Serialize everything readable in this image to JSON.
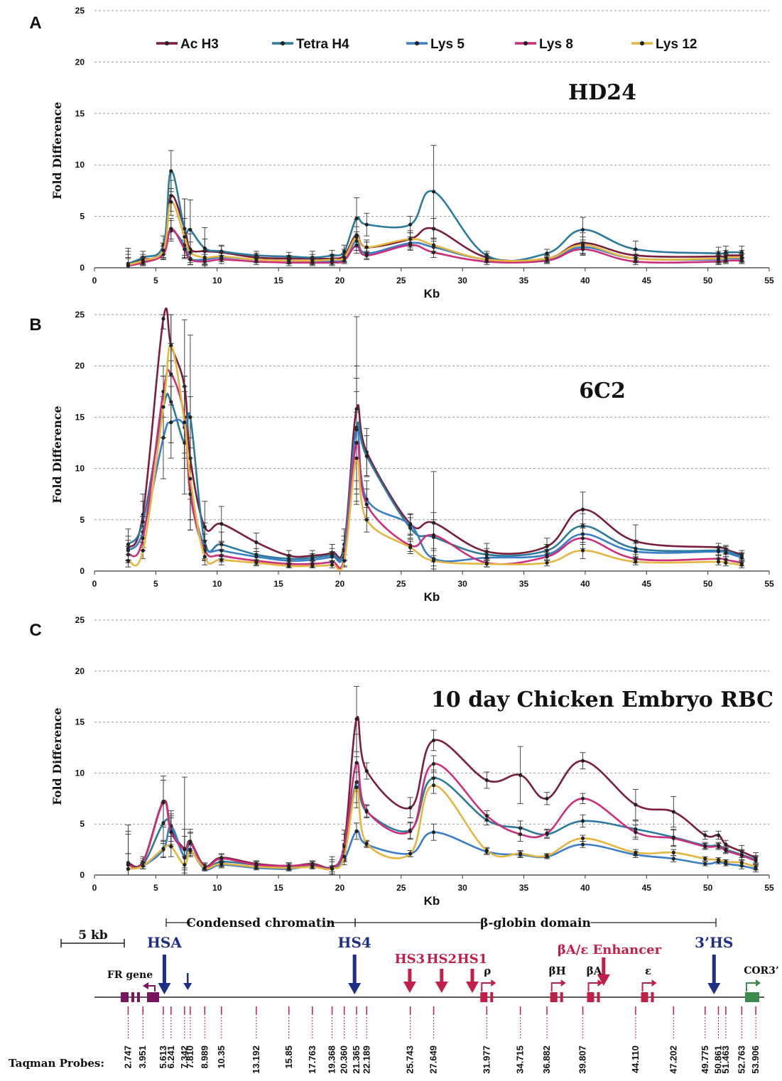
{
  "chart_data": [
    {
      "type": "line",
      "panel_label": "A",
      "title": "HD24",
      "xlabel": "Kb",
      "ylabel": "Fold Difference",
      "xlim": [
        0,
        55
      ],
      "ylim": [
        0,
        25
      ],
      "x_ticks": [
        "0",
        "5",
        "10",
        "15",
        "20",
        "25",
        "30",
        "35",
        "40",
        "45",
        "50",
        "55"
      ],
      "y_ticks": [
        "0",
        "5",
        "10",
        "15",
        "20",
        "25"
      ],
      "grid": "horizontal dashed",
      "legend_position": "top",
      "x": [
        2.747,
        3.951,
        5.613,
        6.241,
        7.342,
        7.81,
        8.989,
        10.35,
        13.192,
        15.85,
        17.763,
        19.368,
        20.36,
        21.365,
        22.189,
        25.743,
        27.649,
        31.977,
        36.882,
        39.807,
        44.11,
        50.861,
        51.463,
        52.763
      ],
      "series": [
        {
          "name": "Ac H3",
          "values": [
            0.4,
            0.8,
            1.6,
            7.0,
            3.8,
            1.8,
            1.6,
            1.5,
            1.0,
            0.9,
            0.9,
            0.9,
            1.2,
            3.2,
            2.0,
            2.8,
            3.8,
            1.0,
            0.9,
            2.4,
            1.2,
            1.1,
            1.2,
            1.2
          ],
          "err": [
            1.2,
            0.5,
            0.8,
            1.5,
            2.9,
            1.5,
            1.2,
            0.6,
            0.4,
            0.3,
            0.4,
            0.4,
            0.6,
            1.5,
            0.7,
            0.8,
            1.0,
            0.4,
            0.4,
            1.0,
            0.5,
            0.5,
            0.5,
            0.5
          ]
        },
        {
          "name": "Tetra H4",
          "values": [
            0.4,
            1.0,
            2.2,
            9.4,
            3.8,
            3.7,
            1.9,
            1.6,
            1.2,
            1.1,
            1.0,
            1.2,
            1.6,
            4.8,
            4.2,
            4.2,
            7.4,
            1.2,
            1.4,
            3.7,
            1.8,
            1.4,
            1.5,
            1.5
          ],
          "err": [
            1.5,
            0.6,
            0.9,
            2.0,
            2.9,
            2.9,
            2.0,
            0.6,
            0.4,
            0.4,
            0.6,
            0.5,
            0.6,
            2.0,
            1.1,
            0.8,
            4.5,
            0.4,
            0.4,
            1.2,
            0.8,
            0.6,
            0.6,
            0.6
          ]
        },
        {
          "name": "Lys 5",
          "values": [
            0.2,
            0.6,
            1.5,
            3.6,
            2.2,
            0.9,
            0.8,
            1.0,
            0.8,
            0.7,
            0.6,
            0.6,
            0.9,
            2.6,
            1.4,
            2.4,
            2.0,
            0.8,
            0.8,
            2.0,
            0.9,
            0.8,
            0.9,
            0.9
          ],
          "err": [
            0.8,
            0.4,
            0.6,
            1.0,
            1.2,
            0.6,
            0.5,
            0.4,
            0.3,
            0.3,
            0.3,
            0.3,
            0.4,
            0.9,
            0.5,
            0.6,
            0.6,
            0.3,
            0.3,
            0.7,
            0.4,
            0.4,
            0.4,
            0.4
          ]
        },
        {
          "name": "Lys 8",
          "values": [
            0.2,
            0.5,
            1.3,
            3.8,
            1.8,
            0.8,
            0.6,
            0.8,
            0.6,
            0.5,
            0.5,
            0.5,
            0.7,
            2.2,
            1.2,
            2.2,
            1.5,
            0.6,
            0.7,
            1.8,
            0.6,
            0.6,
            0.7,
            0.7
          ],
          "err": [
            0.7,
            0.3,
            0.5,
            1.0,
            0.9,
            0.5,
            0.4,
            0.4,
            0.3,
            0.3,
            0.3,
            0.3,
            0.3,
            0.8,
            0.4,
            0.5,
            0.5,
            0.3,
            0.3,
            0.6,
            0.3,
            0.3,
            0.3,
            0.3
          ]
        },
        {
          "name": "Lys 12",
          "values": [
            0.3,
            0.7,
            1.7,
            6.4,
            3.0,
            1.5,
            1.0,
            1.1,
            0.8,
            0.7,
            0.7,
            0.8,
            1.0,
            3.0,
            2.0,
            2.8,
            2.2,
            0.8,
            0.9,
            2.2,
            0.9,
            0.9,
            1.0,
            1.0
          ],
          "err": [
            1.0,
            0.4,
            0.7,
            1.3,
            1.8,
            1.0,
            0.7,
            0.5,
            0.3,
            0.3,
            0.3,
            0.3,
            0.4,
            1.0,
            0.5,
            0.6,
            0.6,
            0.3,
            0.3,
            0.8,
            0.4,
            0.4,
            0.4,
            0.4
          ]
        }
      ]
    },
    {
      "type": "line",
      "panel_label": "B",
      "title": "6C2",
      "xlabel": "Kb",
      "ylabel": "Fold Difference",
      "xlim": [
        0,
        55
      ],
      "ylim": [
        0,
        25
      ],
      "x_ticks": [
        "0",
        "5",
        "10",
        "15",
        "20",
        "25",
        "30",
        "35",
        "40",
        "45",
        "50",
        "55"
      ],
      "y_ticks": [
        "0",
        "5",
        "10",
        "15",
        "20",
        "25"
      ],
      "grid": "horizontal dashed",
      "x": [
        2.747,
        3.951,
        5.613,
        6.241,
        7.342,
        7.81,
        8.989,
        10.35,
        13.192,
        15.85,
        17.763,
        19.368,
        20.36,
        21.365,
        22.189,
        25.743,
        27.649,
        31.977,
        36.882,
        39.807,
        44.11,
        50.861,
        51.463,
        52.763
      ],
      "series": [
        {
          "name": "Ac H3",
          "values": [
            2.2,
            5.5,
            24.6,
            22.0,
            18.0,
            11.0,
            4.3,
            4.6,
            2.8,
            1.5,
            1.5,
            1.8,
            2.6,
            15.8,
            11.6,
            4.6,
            4.7,
            1.9,
            2.4,
            6.0,
            2.9,
            2.3,
            2.1,
            1.6
          ],
          "err": [
            1.2,
            2.0,
            1.0,
            3.0,
            6.5,
            6.0,
            2.5,
            1.7,
            0.9,
            0.5,
            0.5,
            0.8,
            1.5,
            9.0,
            2.3,
            1.0,
            5.0,
            0.8,
            0.8,
            1.7,
            1.6,
            0.4,
            0.4,
            0.4
          ]
        },
        {
          "name": "Tetra H4",
          "values": [
            2.6,
            4.8,
            16.0,
            16.5,
            12.5,
            15.0,
            2.9,
            2.6,
            1.6,
            1.2,
            1.3,
            1.6,
            2.2,
            14.0,
            11.2,
            4.2,
            3.3,
            1.6,
            2.0,
            4.4,
            2.2,
            2.0,
            2.0,
            1.4
          ],
          "err": [
            1.5,
            2.0,
            3.0,
            4.0,
            5.0,
            8.0,
            1.8,
            1.2,
            0.6,
            0.4,
            0.4,
            0.6,
            1.2,
            6.0,
            2.0,
            1.0,
            2.4,
            0.6,
            0.6,
            1.2,
            0.8,
            0.4,
            0.4,
            0.4
          ]
        },
        {
          "name": "Lys 5",
          "values": [
            2.0,
            3.8,
            13.0,
            14.5,
            14.0,
            8.0,
            2.4,
            2.0,
            1.4,
            1.0,
            1.1,
            1.4,
            2.0,
            13.8,
            7.0,
            4.5,
            1.2,
            1.3,
            1.6,
            3.6,
            1.9,
            1.9,
            1.8,
            1.3
          ],
          "err": [
            1.0,
            1.5,
            4.0,
            3.5,
            4.0,
            4.0,
            1.2,
            0.8,
            0.5,
            0.4,
            0.4,
            0.5,
            1.0,
            5.0,
            1.8,
            1.0,
            1.0,
            0.5,
            0.5,
            1.0,
            0.8,
            0.4,
            0.4,
            0.4
          ]
        },
        {
          "name": "Lys 8",
          "values": [
            1.6,
            3.2,
            17.5,
            19.2,
            15.0,
            7.5,
            2.0,
            1.5,
            1.0,
            0.7,
            0.7,
            0.9,
            1.3,
            12.5,
            6.5,
            2.5,
            3.5,
            0.8,
            1.4,
            3.2,
            1.2,
            1.2,
            1.1,
            0.8
          ],
          "err": [
            0.8,
            1.2,
            2.5,
            3.0,
            4.0,
            3.5,
            1.0,
            0.6,
            0.4,
            0.3,
            0.3,
            0.4,
            0.8,
            5.0,
            1.5,
            0.6,
            1.5,
            0.4,
            0.4,
            1.0,
            0.4,
            0.3,
            0.3,
            0.3
          ]
        },
        {
          "name": "Lys 12",
          "values": [
            1.0,
            2.0,
            16.0,
            22.0,
            14.5,
            9.0,
            1.4,
            1.1,
            0.8,
            0.5,
            0.5,
            0.6,
            1.0,
            11.0,
            5.0,
            2.3,
            1.0,
            0.7,
            0.8,
            2.0,
            0.9,
            0.9,
            0.8,
            0.6
          ],
          "err": [
            0.6,
            0.8,
            3.0,
            3.0,
            4.5,
            4.0,
            0.8,
            0.5,
            0.3,
            0.2,
            0.2,
            0.3,
            0.6,
            4.5,
            1.2,
            0.6,
            0.5,
            0.3,
            0.3,
            0.8,
            0.3,
            0.3,
            0.3,
            0.3
          ]
        }
      ]
    },
    {
      "type": "line",
      "panel_label": "C",
      "title": "10 day Chicken Embryo RBC",
      "xlabel": "Kb",
      "ylabel": "Fold Difference",
      "xlim": [
        0,
        55
      ],
      "ylim": [
        0,
        25
      ],
      "x_ticks": [
        "0",
        "5",
        "10",
        "15",
        "20",
        "25",
        "30",
        "35",
        "40",
        "45",
        "50",
        "55"
      ],
      "y_ticks": [
        "0",
        "5",
        "10",
        "15",
        "20",
        "25"
      ],
      "grid": "horizontal dashed",
      "x": [
        2.747,
        3.951,
        5.613,
        6.241,
        7.342,
        7.81,
        8.989,
        10.35,
        13.192,
        15.85,
        17.763,
        19.368,
        20.36,
        21.365,
        22.189,
        25.743,
        27.649,
        31.977,
        34.715,
        36.882,
        39.807,
        44.11,
        47.202,
        49.775,
        50.861,
        51.463,
        52.763,
        53.906
      ],
      "series": [
        {
          "name": "Ac H3",
          "values": [
            1.2,
            1.3,
            7.2,
            4.5,
            2.6,
            3.3,
            0.9,
            1.7,
            1.1,
            0.9,
            1.1,
            0.8,
            3.0,
            15.3,
            10.2,
            6.6,
            13.2,
            9.3,
            9.8,
            7.5,
            11.2,
            6.9,
            6.2,
            3.9,
            3.9,
            3.0,
            2.3,
            1.7
          ],
          "err": [
            3.7,
            0.5,
            2.5,
            1.5,
            7.0,
            1.2,
            0.3,
            0.4,
            0.3,
            0.3,
            0.3,
            1.0,
            1.4,
            3.2,
            0.8,
            1.0,
            1.0,
            0.8,
            2.8,
            0.6,
            0.8,
            1.5,
            1.5,
            0.4,
            0.4,
            0.4,
            0.6,
            0.5
          ]
        },
        {
          "name": "Tetra H4",
          "values": [
            1.0,
            1.0,
            5.1,
            4.8,
            1.8,
            3.1,
            0.7,
            1.3,
            1.0,
            0.8,
            1.0,
            0.7,
            2.4,
            9.1,
            6.2,
            4.4,
            9.5,
            5.4,
            4.6,
            4.0,
            5.3,
            4.5,
            3.7,
            2.9,
            2.9,
            2.5,
            2.0,
            1.5
          ],
          "err": [
            3.0,
            0.4,
            2.0,
            1.5,
            2.0,
            1.0,
            0.2,
            0.4,
            0.3,
            0.3,
            0.3,
            0.6,
            1.0,
            2.5,
            0.6,
            0.8,
            0.8,
            0.5,
            0.7,
            0.4,
            0.6,
            0.8,
            0.8,
            0.3,
            0.3,
            0.3,
            0.5,
            0.4
          ]
        },
        {
          "name": "Lys 5",
          "values": [
            0.6,
            0.9,
            2.5,
            4.8,
            1.7,
            2.5,
            0.6,
            1.0,
            0.7,
            0.6,
            0.9,
            0.6,
            1.5,
            4.3,
            3.0,
            2.1,
            4.2,
            2.3,
            2.0,
            1.8,
            3.0,
            2.0,
            1.6,
            1.1,
            1.3,
            1.1,
            0.9,
            0.6
          ],
          "err": [
            1.5,
            0.3,
            0.8,
            1.0,
            1.0,
            0.6,
            0.2,
            0.3,
            0.2,
            0.2,
            0.2,
            0.3,
            0.5,
            0.8,
            0.3,
            0.3,
            0.8,
            0.3,
            0.3,
            0.2,
            0.3,
            0.3,
            0.3,
            0.2,
            0.2,
            0.2,
            0.3,
            0.3
          ]
        },
        {
          "name": "Lys 8",
          "values": [
            1.0,
            1.2,
            7.1,
            4.2,
            2.5,
            3.2,
            0.8,
            1.6,
            1.0,
            0.9,
            1.0,
            0.7,
            2.8,
            11.0,
            6.3,
            4.3,
            10.9,
            5.8,
            4.0,
            4.1,
            7.5,
            4.2,
            3.6,
            2.8,
            2.8,
            2.4,
            1.9,
            1.4
          ],
          "err": [
            3.3,
            0.4,
            2.2,
            1.4,
            2.0,
            1.0,
            0.3,
            0.4,
            0.3,
            0.3,
            0.3,
            0.8,
            1.2,
            2.8,
            0.6,
            0.8,
            0.8,
            0.5,
            0.7,
            0.4,
            0.5,
            0.7,
            0.8,
            0.3,
            0.3,
            0.3,
            0.5,
            0.4
          ]
        },
        {
          "name": "Lys 12",
          "values": [
            0.6,
            0.9,
            2.6,
            2.8,
            1.0,
            2.4,
            0.7,
            1.1,
            0.8,
            0.7,
            0.8,
            0.6,
            1.8,
            8.6,
            3.1,
            2.1,
            8.8,
            2.4,
            2.1,
            1.9,
            3.6,
            2.2,
            2.2,
            1.6,
            1.5,
            1.3,
            1.2,
            0.8
          ],
          "err": [
            1.5,
            0.3,
            0.8,
            1.0,
            0.8,
            0.6,
            0.2,
            0.3,
            0.2,
            0.2,
            0.2,
            0.3,
            0.5,
            1.5,
            0.3,
            0.3,
            0.8,
            0.3,
            0.3,
            0.2,
            0.3,
            0.3,
            0.3,
            0.2,
            0.2,
            0.2,
            0.3,
            0.3
          ]
        }
      ]
    }
  ],
  "colors": {
    "Ac H3": "#7a1e3c",
    "Tetra H4": "#2c7a9c",
    "Lys 5": "#3a7ec8",
    "Lys 8": "#cc2f7a",
    "Lys 12": "#e4b640",
    "map_blue": "#1f2f86",
    "map_red": "#c21f48",
    "map_purple": "#7a1360",
    "map_green": "#3c8a4e"
  },
  "legend": [
    "Ac H3",
    "Tetra H4",
    "Lys 5",
    "Lys 8",
    "Lys 12"
  ],
  "locus_map": {
    "scale_bar": "5 kb",
    "region_condensed": "Condensed chromatin",
    "region_globin": "β-globin domain",
    "blue_sites": [
      {
        "label": "HSA",
        "kb": 5.7,
        "big": true
      },
      {
        "label": "",
        "kb": 7.6,
        "big": false
      },
      {
        "label": "HS4",
        "kb": 21.2,
        "big": true
      },
      {
        "label": "3’HS",
        "kb": 50.5,
        "big": true
      }
    ],
    "red_sites": [
      {
        "label": "HS3",
        "kb": 25.7
      },
      {
        "label": "HS2",
        "kb": 28.3
      },
      {
        "label": "HS1",
        "kb": 30.8
      }
    ],
    "enhancer": {
      "label": "βA/ε Enhancer",
      "kb": 41.5
    },
    "genes": [
      {
        "label": "ρ",
        "kb": 31.8
      },
      {
        "label": "βH",
        "kb": 37.5
      },
      {
        "label": "βA",
        "kb": 40.5
      },
      {
        "label": "ε",
        "kb": 44.9
      }
    ],
    "fr_gene": "FR gene",
    "cor3": "COR3’",
    "probes_label": "Taqman Probes:",
    "probes": [
      "2.747",
      "3.951",
      "5.613",
      "6.241",
      "7.342",
      "7.810",
      "8.989",
      "10.35",
      "13.192",
      "15.85",
      "17.763",
      "19.368",
      "20.360",
      "21.365",
      "22.189",
      "25.743",
      "27.649",
      "31.977",
      "34.715",
      "36.882",
      "39.807",
      "44.110",
      "47.202",
      "49.775",
      "50.861",
      "51.463",
      "52.763",
      "53.906"
    ]
  }
}
